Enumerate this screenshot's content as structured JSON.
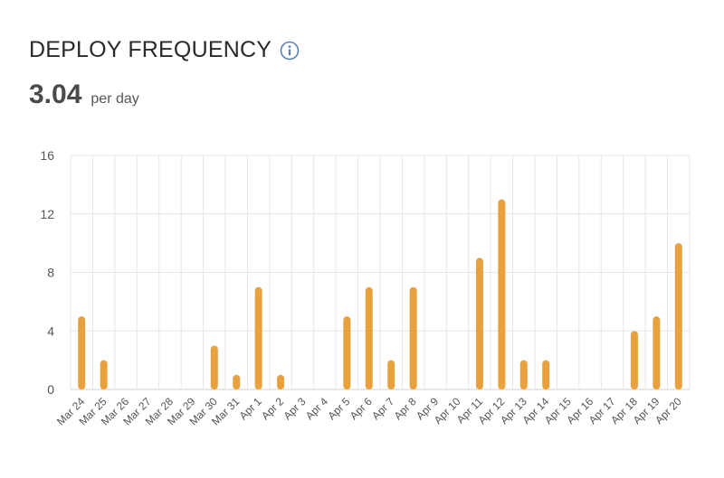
{
  "header": {
    "title": "DEPLOY FREQUENCY",
    "info_icon": "info-icon"
  },
  "metric": {
    "value": "3.04",
    "unit": "per day"
  },
  "colors": {
    "bar": "#E8A13D",
    "grid": "#E6E6E6",
    "axis": "#CFCFCF",
    "info_icon": "#5B7FB5"
  },
  "chart_data": {
    "type": "bar",
    "title": "",
    "xlabel": "",
    "ylabel": "",
    "ylim": [
      0,
      16
    ],
    "yticks": [
      0,
      4,
      8,
      12,
      16
    ],
    "grid": true,
    "categories": [
      "Mar 24",
      "Mar 25",
      "Mar 26",
      "Mar 27",
      "Mar 28",
      "Mar 29",
      "Mar 30",
      "Mar 31",
      "Apr 1",
      "Apr 2",
      "Apr 3",
      "Apr 4",
      "Apr 5",
      "Apr 6",
      "Apr 7",
      "Apr 8",
      "Apr 9",
      "Apr 10",
      "Apr 11",
      "Apr 12",
      "Apr 13",
      "Apr 14",
      "Apr 15",
      "Apr 16",
      "Apr 17",
      "Apr 18",
      "Apr 19",
      "Apr 20"
    ],
    "values": [
      5,
      2,
      0,
      0,
      0,
      0,
      3,
      1,
      7,
      1,
      0,
      0,
      5,
      7,
      2,
      7,
      0,
      0,
      9,
      13,
      2,
      2,
      0,
      0,
      0,
      4,
      5,
      10
    ]
  }
}
